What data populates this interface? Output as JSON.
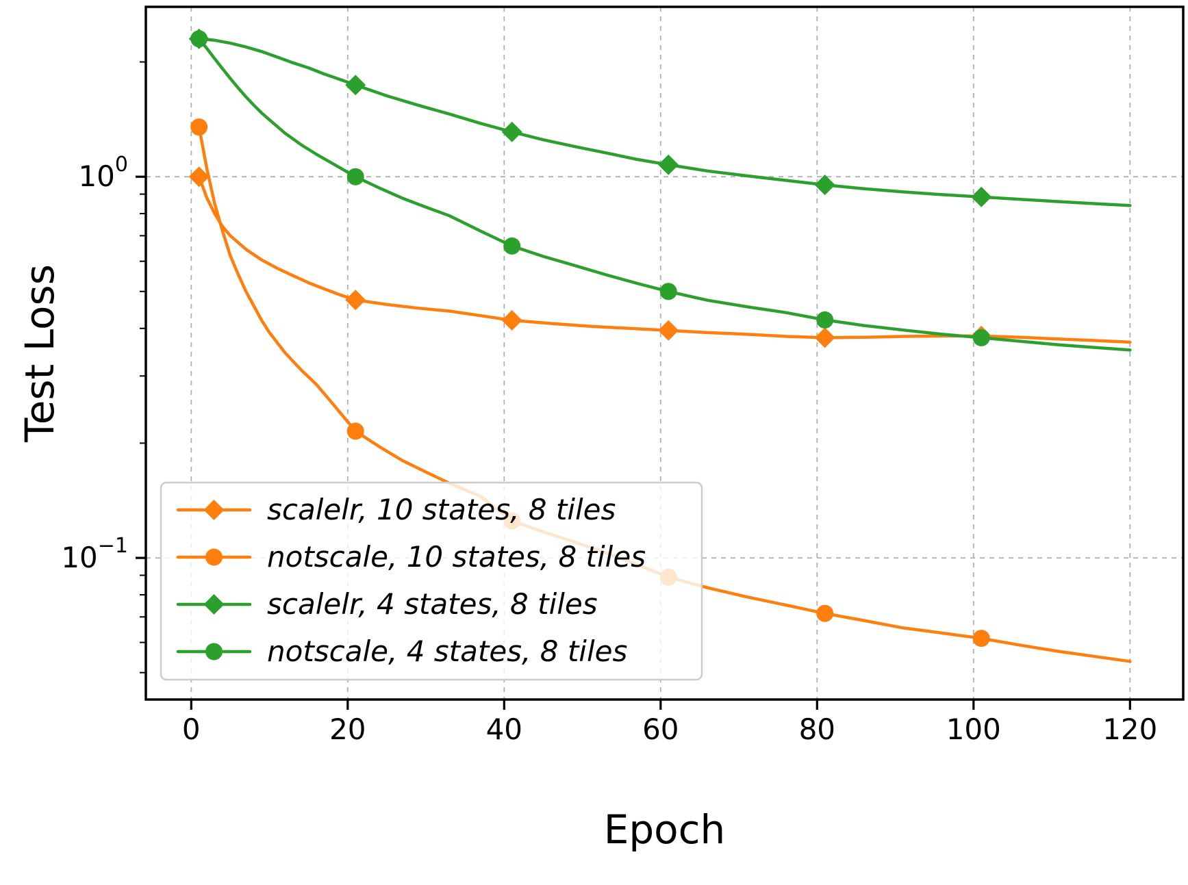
{
  "chart_data": {
    "type": "line",
    "title": "",
    "xlabel": "Epoch",
    "ylabel": "Test Loss",
    "x_scale": "linear",
    "y_scale": "log",
    "xlim": [
      -5.8,
      126.8
    ],
    "ylim": [
      0.0425,
      2.79
    ],
    "x_ticks": [
      0,
      20,
      40,
      60,
      80,
      100,
      120
    ],
    "y_ticks": [
      {
        "value": 1,
        "mantissa": "10",
        "exponent": "0"
      },
      {
        "value": 0.1,
        "mantissa": "10",
        "exponent": "−1"
      }
    ],
    "grid": true,
    "grid_color": "#b0b0b0",
    "frame_color": "#000000",
    "legend": {
      "position": "lower left",
      "border_color": "#cccccc",
      "background": "#ffffff"
    },
    "series": [
      {
        "name": "scalelr, 10 states, 8 tiles",
        "color": "#ff7f0e",
        "marker": "diamond",
        "x": [
          1,
          2,
          3,
          4,
          5,
          7,
          9,
          11,
          13,
          15,
          17,
          19,
          21,
          25,
          29,
          33,
          37,
          41,
          46,
          51,
          56,
          61,
          66,
          71,
          76,
          81,
          86,
          91,
          96,
          101,
          106,
          111,
          115,
          120
        ],
        "y": [
          1.0,
          0.88,
          0.8,
          0.74,
          0.7,
          0.645,
          0.605,
          0.575,
          0.55,
          0.527,
          0.508,
          0.49,
          0.475,
          0.462,
          0.452,
          0.444,
          0.432,
          0.42,
          0.412,
          0.405,
          0.4,
          0.395,
          0.39,
          0.386,
          0.381,
          0.378,
          0.379,
          0.381,
          0.382,
          0.382,
          0.379,
          0.375,
          0.372,
          0.368
        ],
        "marker_x": [
          1,
          21,
          41,
          61,
          81,
          101
        ],
        "marker_y": [
          1.0,
          0.475,
          0.42,
          0.395,
          0.378,
          0.382
        ]
      },
      {
        "name": "notscale, 10 states, 8 tiles",
        "color": "#ff7f0e",
        "marker": "circle",
        "x": [
          1,
          2,
          3,
          4,
          5,
          6,
          7,
          8,
          9,
          10,
          12,
          14,
          16,
          18,
          21,
          24,
          27,
          30,
          33,
          37,
          41,
          45,
          49,
          53,
          57,
          61,
          66,
          71,
          76,
          81,
          86,
          91,
          96,
          101,
          106,
          111,
          115,
          120
        ],
        "y": [
          1.35,
          1.05,
          0.85,
          0.72,
          0.62,
          0.555,
          0.5,
          0.458,
          0.42,
          0.39,
          0.345,
          0.312,
          0.285,
          0.255,
          0.215,
          0.196,
          0.18,
          0.168,
          0.157,
          0.145,
          0.125,
          0.117,
          0.11,
          0.103,
          0.096,
          0.089,
          0.0835,
          0.079,
          0.0752,
          0.0715,
          0.0685,
          0.0655,
          0.0635,
          0.0615,
          0.059,
          0.0568,
          0.0553,
          0.0535
        ],
        "marker_x": [
          1,
          21,
          41,
          61,
          81,
          101
        ],
        "marker_y": [
          1.35,
          0.215,
          0.125,
          0.089,
          0.0715,
          0.0615
        ]
      },
      {
        "name": "scalelr, 4 states, 8 tiles",
        "color": "#2ca02c",
        "marker": "diamond",
        "x": [
          1,
          3,
          5,
          7,
          9,
          11,
          13,
          15,
          17,
          19,
          21,
          25,
          29,
          33,
          37,
          41,
          45,
          49,
          53,
          57,
          61,
          66,
          71,
          76,
          81,
          86,
          91,
          96,
          101,
          106,
          111,
          115,
          120
        ],
        "y": [
          2.3,
          2.28,
          2.24,
          2.19,
          2.13,
          2.06,
          1.99,
          1.93,
          1.86,
          1.8,
          1.74,
          1.63,
          1.54,
          1.46,
          1.38,
          1.31,
          1.25,
          1.2,
          1.155,
          1.11,
          1.075,
          1.035,
          1.005,
          0.978,
          0.952,
          0.93,
          0.912,
          0.897,
          0.885,
          0.872,
          0.86,
          0.851,
          0.84
        ],
        "marker_x": [
          1,
          21,
          41,
          61,
          81,
          101
        ],
        "marker_y": [
          2.3,
          1.74,
          1.31,
          1.075,
          0.952,
          0.885
        ]
      },
      {
        "name": "notscale, 4 states, 8 tiles",
        "color": "#2ca02c",
        "marker": "circle",
        "x": [
          1,
          2,
          3,
          4,
          5,
          6,
          7,
          8,
          9,
          10,
          12,
          14,
          16,
          18,
          21,
          24,
          27,
          30,
          33,
          37,
          41,
          45,
          49,
          53,
          57,
          61,
          66,
          71,
          76,
          81,
          86,
          91,
          96,
          101,
          106,
          111,
          115,
          120
        ],
        "y": [
          2.3,
          2.17,
          2.04,
          1.92,
          1.81,
          1.71,
          1.62,
          1.54,
          1.47,
          1.41,
          1.3,
          1.215,
          1.145,
          1.085,
          1.0,
          0.935,
          0.878,
          0.832,
          0.79,
          0.72,
          0.658,
          0.618,
          0.585,
          0.553,
          0.525,
          0.5,
          0.474,
          0.456,
          0.44,
          0.421,
          0.407,
          0.396,
          0.386,
          0.378,
          0.37,
          0.362,
          0.357,
          0.351
        ],
        "marker_x": [
          1,
          21,
          41,
          61,
          81,
          101
        ],
        "marker_y": [
          2.3,
          1.0,
          0.658,
          0.5,
          0.421,
          0.378
        ]
      }
    ]
  }
}
